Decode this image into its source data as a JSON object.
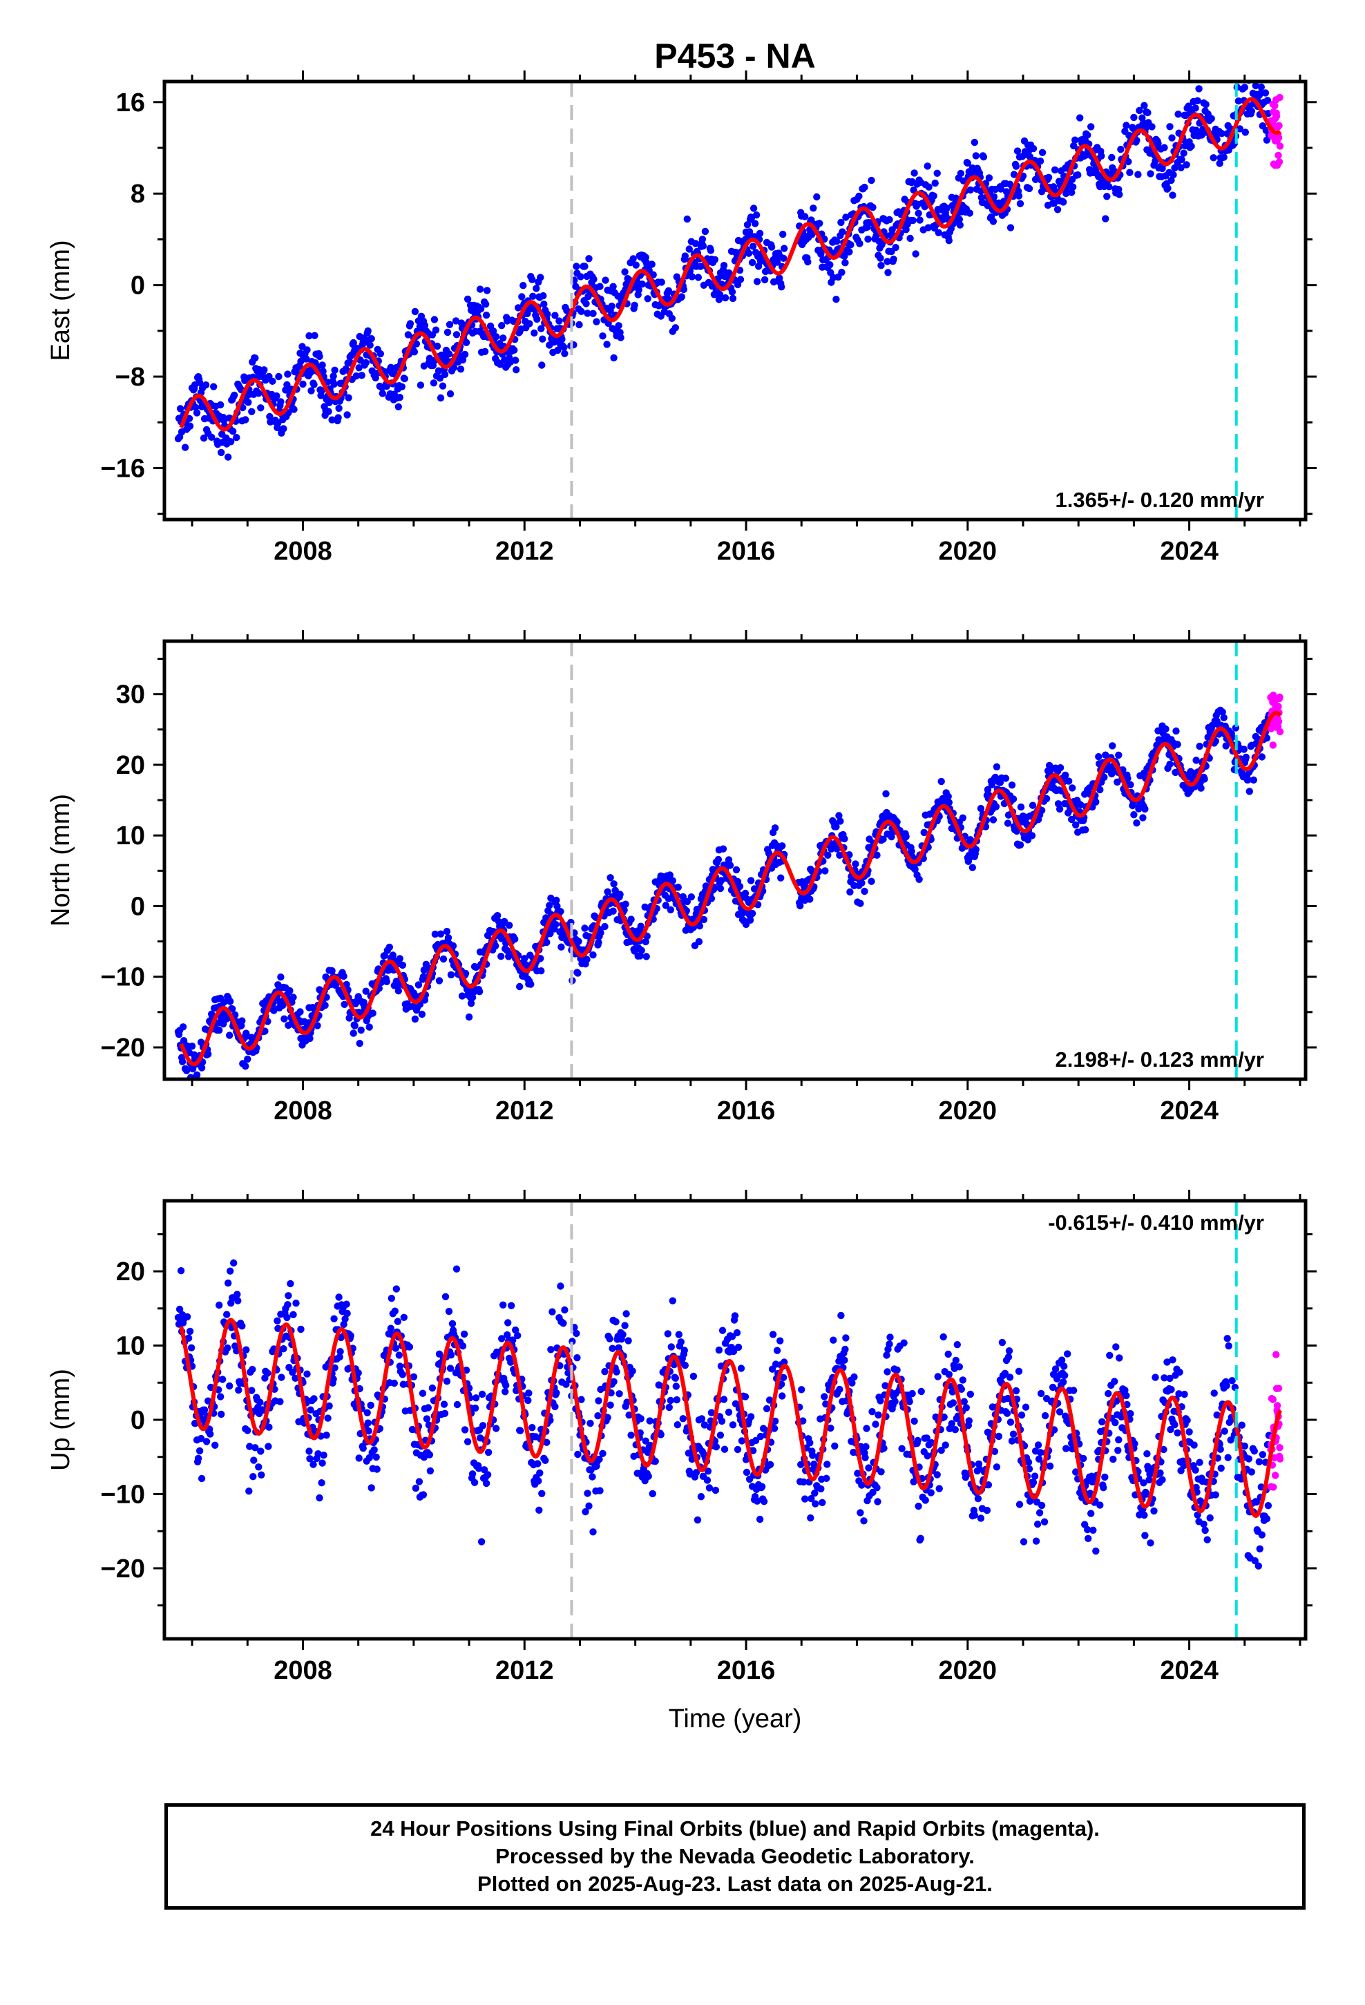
{
  "chart_data": {
    "type": "scatter",
    "title": "P453 - NA",
    "xlabel": "Time (year)",
    "xlim": [
      2005.5,
      2026.1
    ],
    "xticks": [
      2008,
      2012,
      2016,
      2020,
      2024
    ],
    "vlines": [
      {
        "x": 2012.85,
        "color": "#c0c0c0",
        "style": "dashed"
      },
      {
        "x": 2024.85,
        "color": "#00e0e0",
        "style": "dashed"
      }
    ],
    "colors": {
      "final": "#0000ff",
      "rapid": "#ff00ff",
      "model": "#ff0000"
    },
    "panels": [
      {
        "name": "east",
        "ylabel": "East (mm)",
        "ylim": [
          -20.5,
          17.8
        ],
        "yticks": [
          16,
          8,
          0,
          -8,
          -16
        ],
        "rate_label": "1.365+/- 0.120 mm/yr",
        "rate_position": "bottom-right",
        "model": {
          "t0": 2005.8,
          "v0": -11.9,
          "trend": 1.365,
          "amp": 1.8,
          "phase_year": 2006.1,
          "offset_after_2024_85": 0
        }
      },
      {
        "name": "north",
        "ylabel": "North (mm)",
        "ylim": [
          -24.5,
          37.5
        ],
        "yticks": [
          30,
          20,
          10,
          0,
          -10,
          -20
        ],
        "rate_label": "2.198+/- 0.123 mm/yr",
        "rate_position": "bottom-right",
        "model": {
          "t0": 2005.8,
          "v0": -19.5,
          "trend": 2.198,
          "amp": 3.4,
          "phase_year": 2006.55,
          "offset_after_2024_85": 0
        }
      },
      {
        "name": "up",
        "ylabel": "Up (mm)",
        "ylim": [
          -29.5,
          29.5
        ],
        "yticks": [
          20,
          10,
          0,
          -10,
          -20
        ],
        "rate_label": "-0.615+/- 0.410 mm/yr",
        "rate_position": "top-right",
        "model": {
          "t0": 2005.8,
          "v0": 6.5,
          "trend": -0.615,
          "amp": 7.5,
          "phase_year": 2005.7,
          "offset_after_2024_85": 0
        }
      }
    ],
    "data_span": {
      "first": 2005.75,
      "last_final": 2025.45,
      "last_rapid": 2025.64
    }
  },
  "footer": {
    "line1": "24 Hour Positions Using Final Orbits (blue) and Rapid Orbits (magenta).",
    "line2": "Processed by the Nevada Geodetic Laboratory.",
    "line3": "Plotted on 2025-Aug-23. Last data on 2025-Aug-21."
  }
}
